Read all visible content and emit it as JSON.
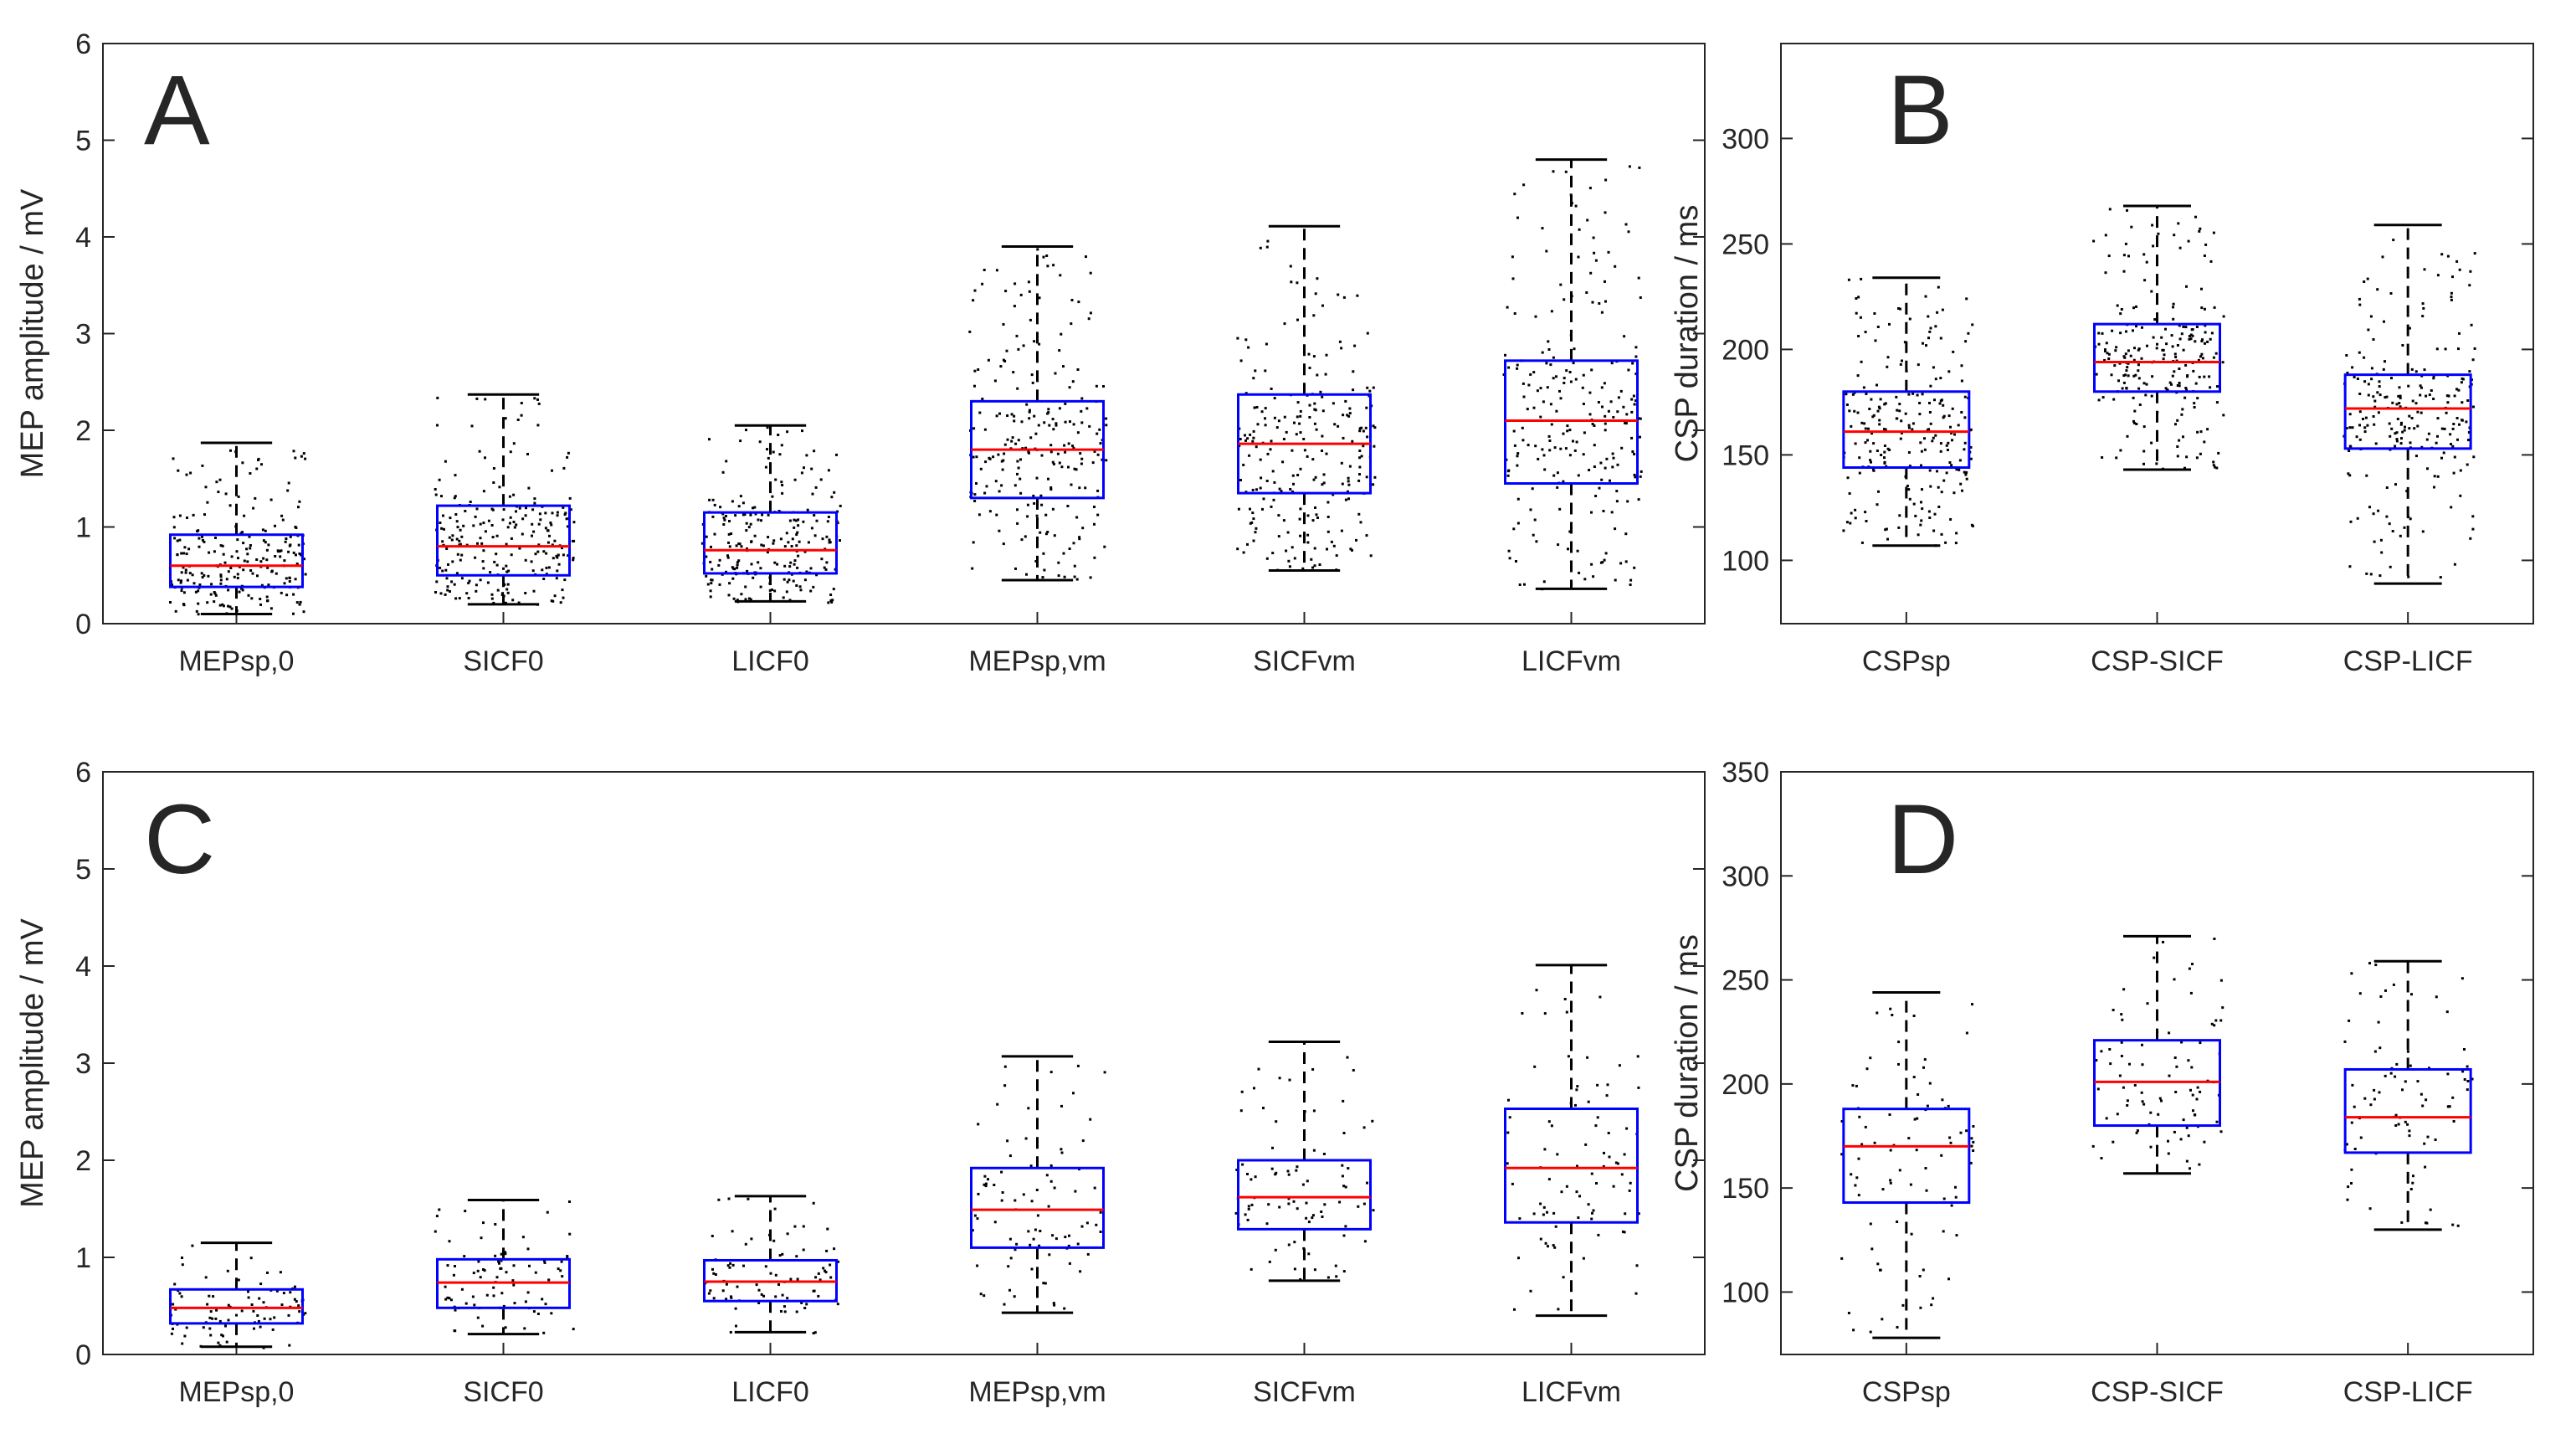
{
  "colors": {
    "box": "#0000ff",
    "median": "#ff0000",
    "whisker": "#000000",
    "scatter": "#000000",
    "axis": "#262626"
  },
  "chart_data": [
    {
      "panel": "A",
      "type": "box",
      "xlabel": "",
      "ylabel": "MEP amplitude / mV",
      "ylim": [
        0,
        6
      ],
      "yticks": [
        0,
        1,
        2,
        3,
        4,
        5,
        6
      ],
      "categories": [
        "MEPsp,0",
        "SICF0",
        "LICF0",
        "MEPsp,vm",
        "SICFvm",
        "LICFvm"
      ],
      "boxes": [
        {
          "q1": 0.38,
          "median": 0.6,
          "q3": 0.92,
          "whisker_low": 0.1,
          "whisker_high": 1.87,
          "n_points": 230
        },
        {
          "q1": 0.5,
          "median": 0.8,
          "q3": 1.22,
          "whisker_low": 0.2,
          "whisker_high": 2.37,
          "n_points": 230
        },
        {
          "q1": 0.52,
          "median": 0.76,
          "q3": 1.15,
          "whisker_low": 0.23,
          "whisker_high": 2.05,
          "n_points": 230
        },
        {
          "q1": 1.3,
          "median": 1.8,
          "q3": 2.3,
          "whisker_low": 0.45,
          "whisker_high": 3.9,
          "n_points": 230
        },
        {
          "q1": 1.35,
          "median": 1.86,
          "q3": 2.37,
          "whisker_low": 0.55,
          "whisker_high": 4.11,
          "n_points": 230
        },
        {
          "q1": 1.45,
          "median": 2.1,
          "q3": 2.72,
          "whisker_low": 0.36,
          "whisker_high": 4.8,
          "n_points": 230
        }
      ]
    },
    {
      "panel": "B",
      "type": "box",
      "xlabel": "",
      "ylabel": "CSP duration / ms",
      "ylim": [
        70,
        345
      ],
      "yticks": [
        100,
        150,
        200,
        250,
        300
      ],
      "categories": [
        "CSPsp",
        "CSP-SICF",
        "CSP-LICF"
      ],
      "boxes": [
        {
          "q1": 144,
          "median": 161,
          "q3": 180,
          "whisker_low": 107,
          "whisker_high": 234,
          "n_points": 230
        },
        {
          "q1": 180,
          "median": 194,
          "q3": 212,
          "whisker_low": 143,
          "whisker_high": 268,
          "n_points": 230
        },
        {
          "q1": 153,
          "median": 172,
          "q3": 188,
          "whisker_low": 89,
          "whisker_high": 259,
          "n_points": 230
        }
      ]
    },
    {
      "panel": "C",
      "type": "box",
      "xlabel": "",
      "ylabel": "MEP amplitude / mV",
      "ylim": [
        0,
        6
      ],
      "yticks": [
        0,
        1,
        2,
        3,
        4,
        5,
        6
      ],
      "categories": [
        "MEPsp,0",
        "SICF0",
        "LICF0",
        "MEPsp,vm",
        "SICFvm",
        "LICFvm"
      ],
      "boxes": [
        {
          "q1": 0.32,
          "median": 0.48,
          "q3": 0.67,
          "whisker_low": 0.08,
          "whisker_high": 1.15,
          "n_points": 85
        },
        {
          "q1": 0.48,
          "median": 0.74,
          "q3": 0.98,
          "whisker_low": 0.21,
          "whisker_high": 1.59,
          "n_points": 85
        },
        {
          "q1": 0.55,
          "median": 0.75,
          "q3": 0.97,
          "whisker_low": 0.23,
          "whisker_high": 1.63,
          "n_points": 85
        },
        {
          "q1": 1.1,
          "median": 1.49,
          "q3": 1.92,
          "whisker_low": 0.43,
          "whisker_high": 3.07,
          "n_points": 85
        },
        {
          "q1": 1.29,
          "median": 1.62,
          "q3": 2.0,
          "whisker_low": 0.76,
          "whisker_high": 3.22,
          "n_points": 85
        },
        {
          "q1": 1.36,
          "median": 1.92,
          "q3": 2.53,
          "whisker_low": 0.4,
          "whisker_high": 4.01,
          "n_points": 85
        }
      ]
    },
    {
      "panel": "D",
      "type": "box",
      "xlabel": "",
      "ylabel": "CSP duration / ms",
      "ylim": [
        70,
        350
      ],
      "yticks": [
        100,
        150,
        200,
        250,
        300,
        350
      ],
      "categories": [
        "CSPsp",
        "CSP-SICF",
        "CSP-LICF"
      ],
      "boxes": [
        {
          "q1": 143,
          "median": 170,
          "q3": 188,
          "whisker_low": 78,
          "whisker_high": 244,
          "n_points": 85
        },
        {
          "q1": 180,
          "median": 201,
          "q3": 221,
          "whisker_low": 157,
          "whisker_high": 271,
          "n_points": 85
        },
        {
          "q1": 167,
          "median": 184,
          "q3": 207,
          "whisker_low": 130,
          "whisker_high": 259,
          "n_points": 85
        }
      ]
    }
  ]
}
